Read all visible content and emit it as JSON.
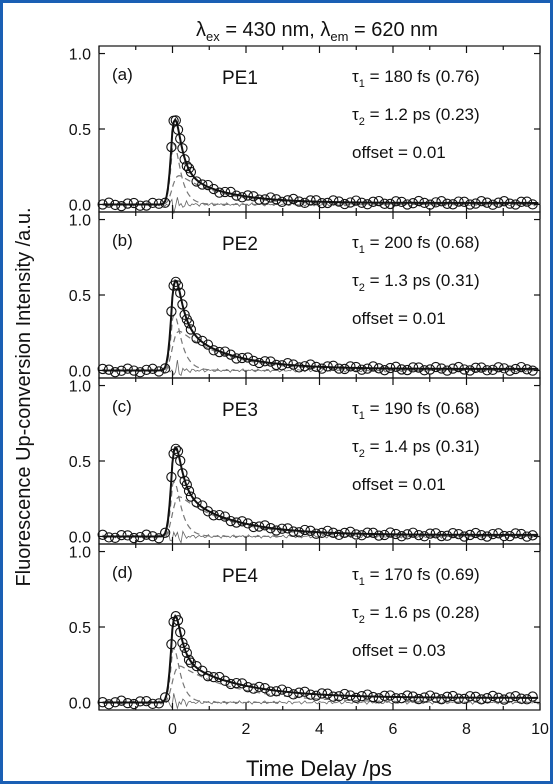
{
  "chart_data": {
    "type": "scatter",
    "title": "λex = 430 nm, λem = 620 nm",
    "title_parts": {
      "lambda": "λ",
      "ex_sub": "ex",
      "ex_value": " = 430 nm, ",
      "em_sub": "em",
      "em_value": " = 620 nm"
    },
    "xlabel": "Time Delay /ps",
    "ylabel": "Fluorescence Up-conversion Intensity /a.u.",
    "xlim": [
      -2,
      10
    ],
    "ylim": [
      -0.05,
      1.05
    ],
    "x_ticks": [
      "0",
      "2",
      "4",
      "6",
      "8",
      "10"
    ],
    "y_ticks": [
      "0.0",
      "0.5",
      "1.0"
    ],
    "legend": "none",
    "panels": [
      {
        "tag": "(a)",
        "sample": "PE1",
        "t1_label": "τ",
        "t1_sub": "1",
        "t1_value": " = 180 fs (0.76)",
        "t2_label": "τ",
        "t2_sub": "2",
        "t2_value": " = 1.2 ps (0.23)",
        "offset_text": "offset = 0.01",
        "tau1_ps": 0.18,
        "a1": 0.76,
        "tau2_ps": 1.2,
        "a2": 0.23,
        "offset": 0.01
      },
      {
        "tag": "(b)",
        "sample": "PE2",
        "t1_label": "τ",
        "t1_sub": "1",
        "t1_value": " = 200 fs (0.68)",
        "t2_label": "τ",
        "t2_sub": "2",
        "t2_value": " = 1.3 ps (0.31)",
        "offset_text": "offset = 0.01",
        "tau1_ps": 0.2,
        "a1": 0.68,
        "tau2_ps": 1.3,
        "a2": 0.31,
        "offset": 0.01
      },
      {
        "tag": "(c)",
        "sample": "PE3",
        "t1_label": "τ",
        "t1_sub": "1",
        "t1_value": " = 190 fs (0.68)",
        "t2_label": "τ",
        "t2_sub": "2",
        "t2_value": " = 1.4 ps (0.31)",
        "offset_text": "offset = 0.01",
        "tau1_ps": 0.19,
        "a1": 0.68,
        "tau2_ps": 1.4,
        "a2": 0.31,
        "offset": 0.01
      },
      {
        "tag": "(d)",
        "sample": "PE4",
        "t1_label": "τ",
        "t1_sub": "1",
        "t1_value": " = 170 fs (0.69)",
        "t2_label": "τ",
        "t2_sub": "2",
        "t2_value": " = 1.6 ps (0.28)",
        "offset_text": "offset = 0.03",
        "tau1_ps": 0.17,
        "a1": 0.69,
        "tau2_ps": 1.6,
        "a2": 0.28,
        "offset": 0.03
      }
    ],
    "colors": {
      "frame": "#1a5fb4",
      "data": "#111111",
      "fit": "#111111",
      "component": "#777777",
      "residual": "#666666"
    }
  }
}
